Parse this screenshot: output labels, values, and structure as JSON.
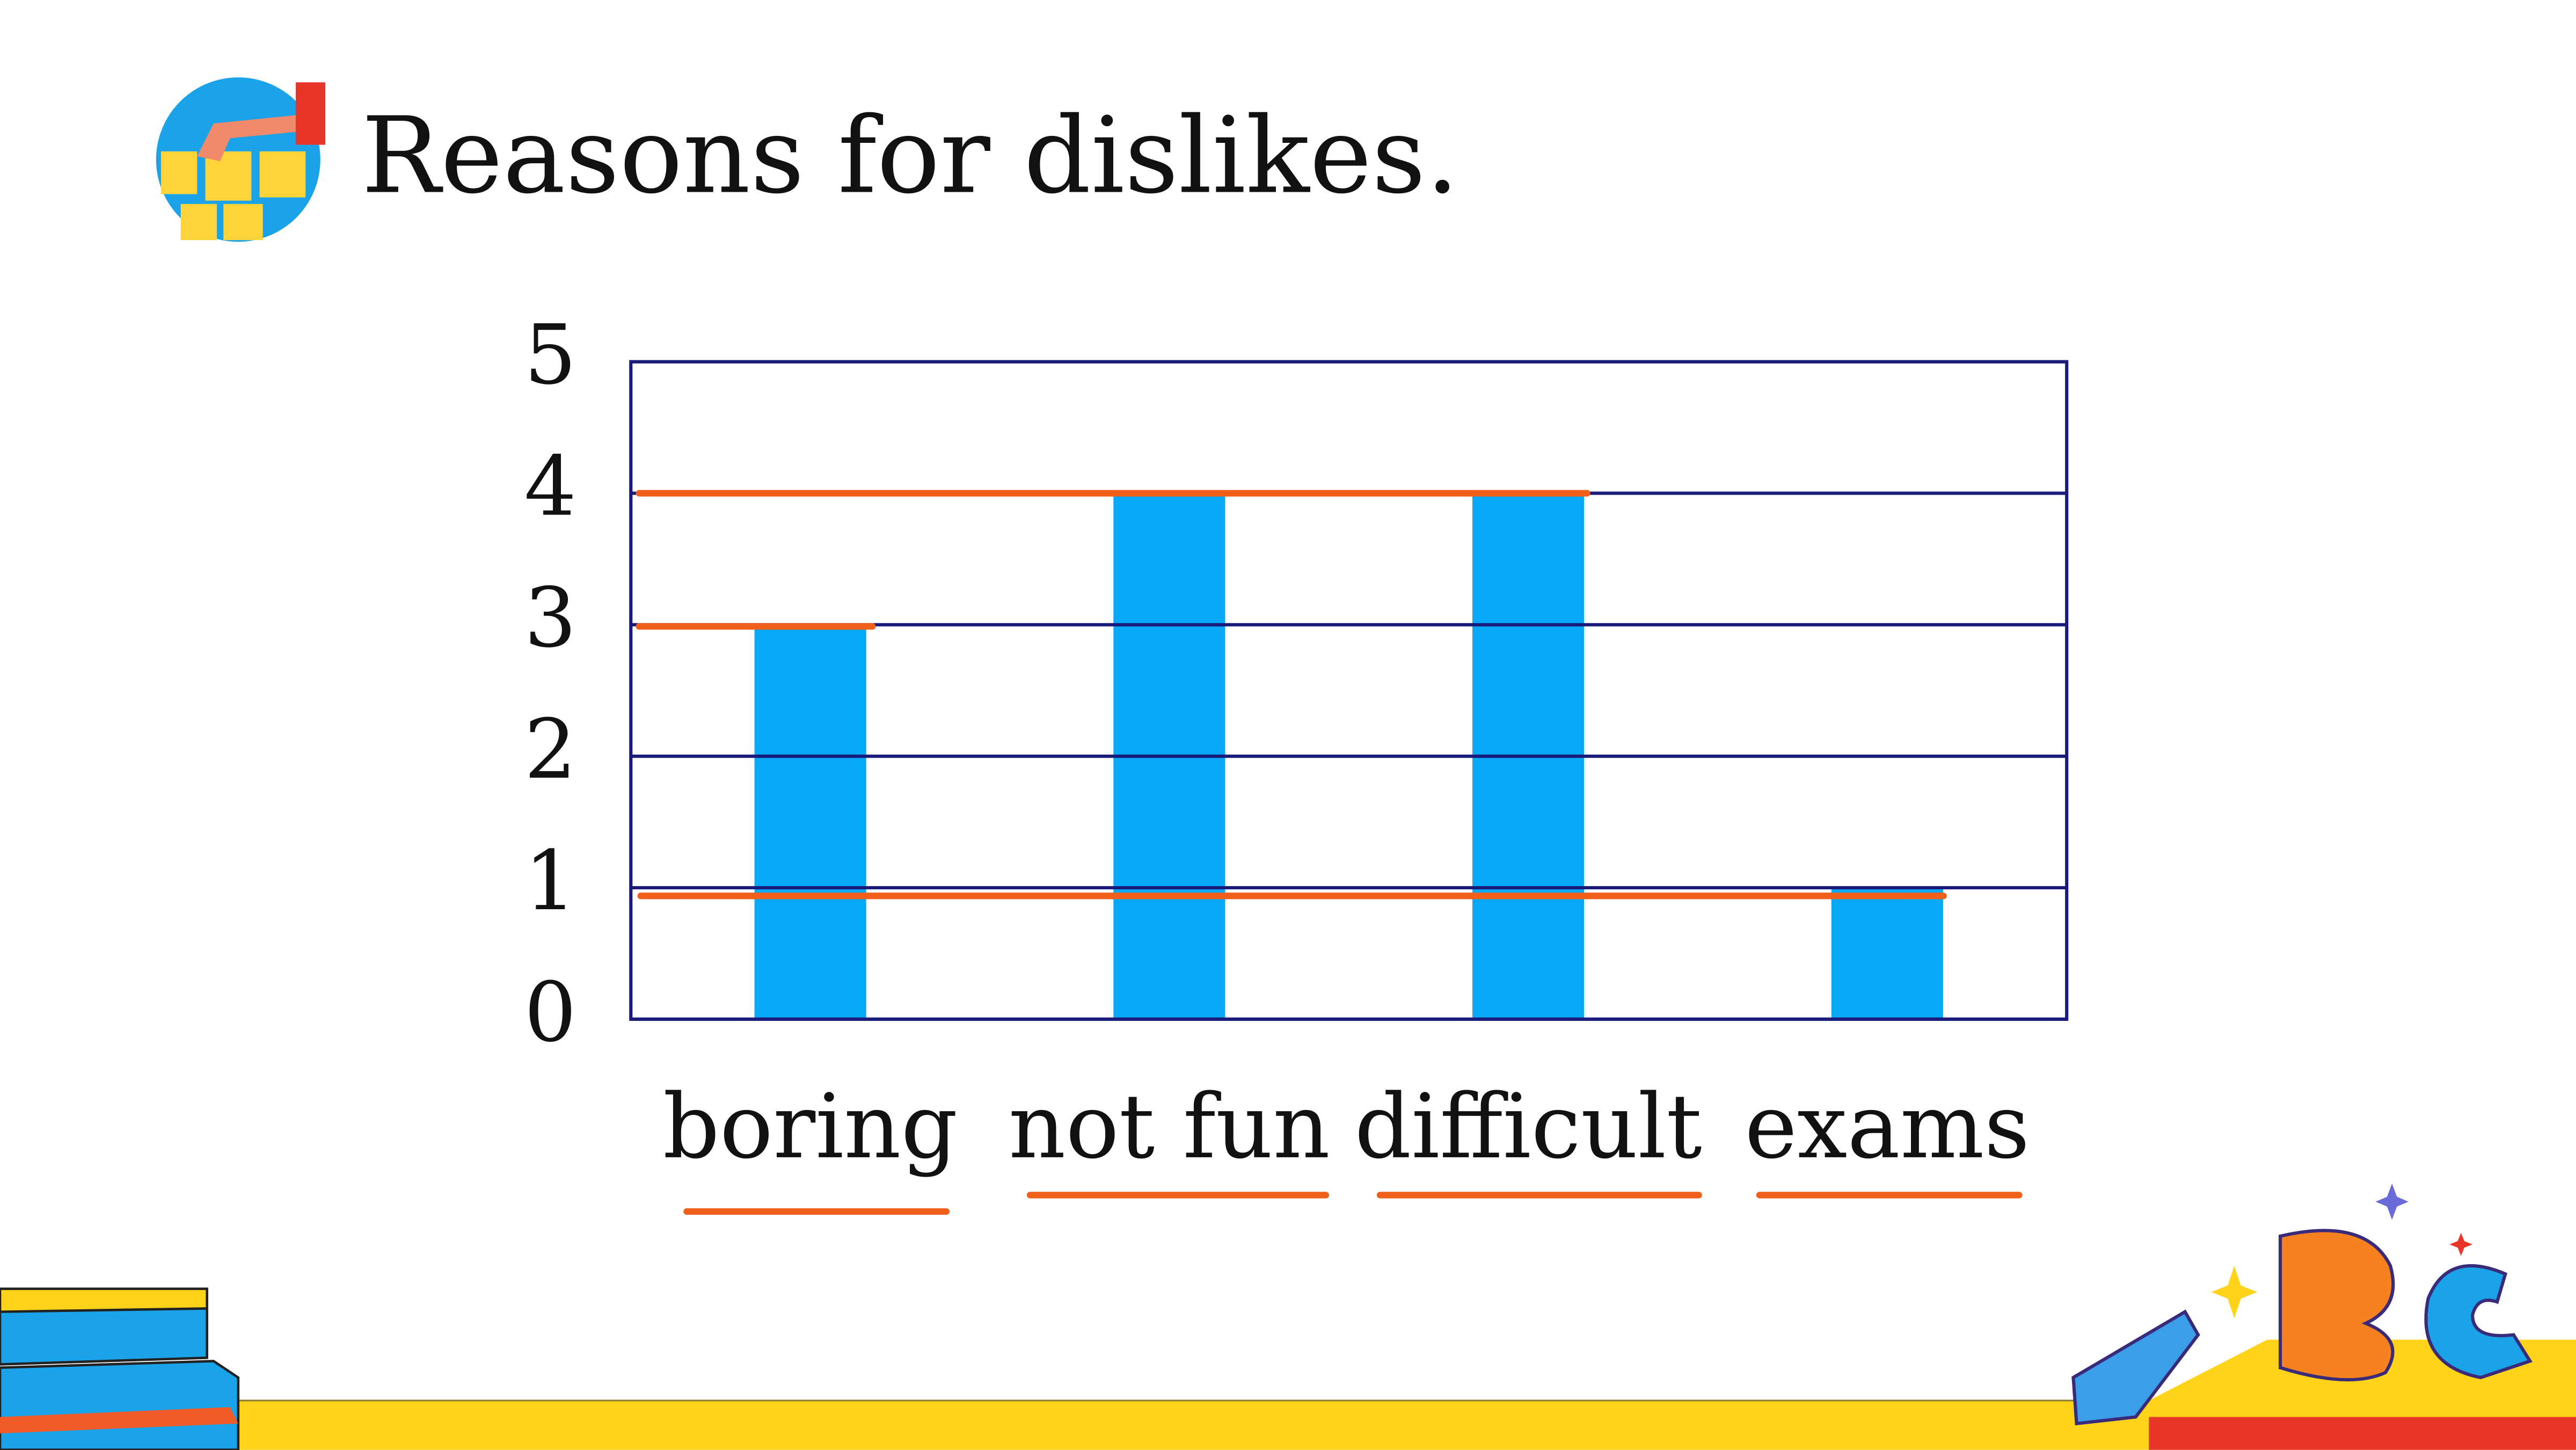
{
  "chart_data": {
    "type": "bar",
    "title": "Reasons for dislikes.",
    "categories": [
      "boring",
      "not fun",
      "difficult",
      "exams"
    ],
    "values": [
      3,
      4,
      4,
      1
    ],
    "color": "#07a8f5",
    "ylim": [
      0,
      5
    ],
    "yticks": [
      0,
      1,
      2,
      3,
      4,
      5
    ],
    "grid": true
  }
}
